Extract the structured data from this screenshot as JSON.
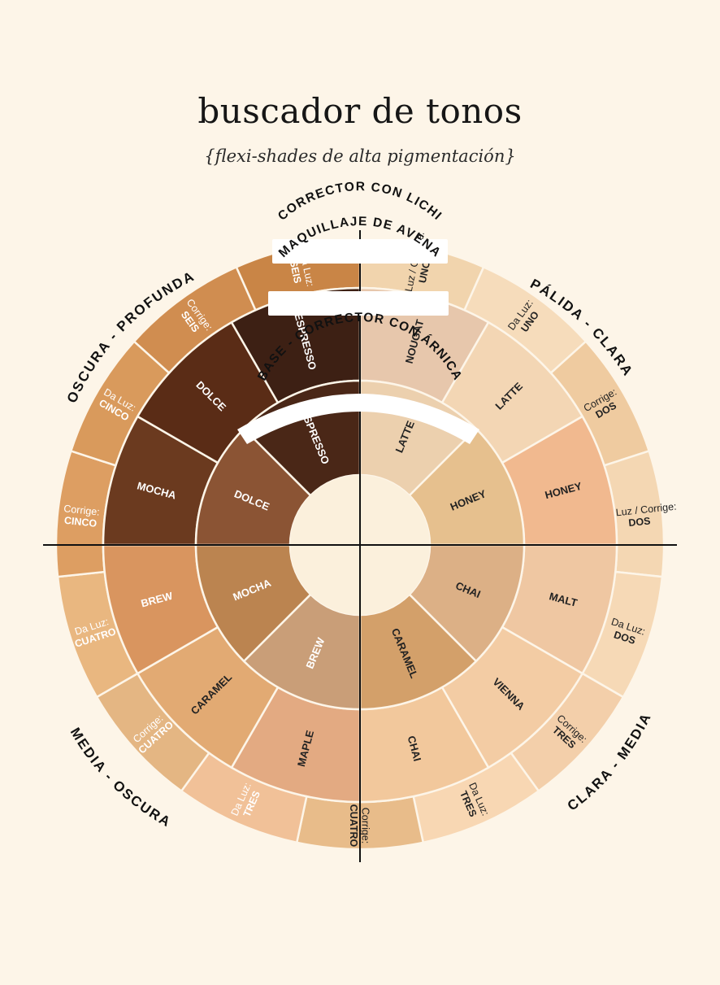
{
  "header": {
    "title": "buscador de tonos",
    "subtitle": "{flexi-shades de alta pigmentación}"
  },
  "rings": {
    "outer": "CORRECTOR CON LICHI",
    "middle": "MAQUILLAJE DE AVENA",
    "inner": "BASE - CORRECTOR CON ÁRNICA"
  },
  "quadrants": {
    "top_right": "PÁLIDA - CLARA",
    "top_left": "OSCURA - PROFUNDA",
    "bottom_right": "CLARA - MEDIA",
    "bottom_left": "MEDIA - OSCURA"
  },
  "colors": {
    "background": "#fdf5e8",
    "hub": "#fbf0dc",
    "axis": "#111111"
  },
  "outer_segments": [
    {
      "lines": [
        "Da Luz / Corrige:",
        "UNO"
      ],
      "color": "#f1d4ad",
      "text_color": "#222222"
    },
    {
      "lines": [
        "Da Luz:",
        "UNO"
      ],
      "color": "#f6dcbb",
      "text_color": "#222222"
    },
    {
      "lines": [
        "Corrige:",
        "DOS"
      ],
      "color": "#efcba0",
      "text_color": "#222222"
    },
    {
      "lines": [
        "Da Luz / Corrige:",
        "DOS"
      ],
      "color": "#f4d7b3",
      "text_color": "#222222"
    },
    {
      "lines": [
        "Da Luz:",
        "DOS"
      ],
      "color": "#f6d9b6",
      "text_color": "#222222"
    },
    {
      "lines": [
        "Corrige:",
        "TRES"
      ],
      "color": "#f3cfaa",
      "text_color": "#222222"
    },
    {
      "lines": [
        "Da Luz:",
        "TRES"
      ],
      "color": "#f8d7b3",
      "text_color": "#222222"
    },
    {
      "lines": [
        "Corrige:",
        "CUATRO"
      ],
      "color": "#e8bc8a",
      "text_color": "#222222"
    },
    {
      "lines": [
        "Da Luz:",
        "TRES"
      ],
      "color": "#f1c198",
      "text_color": "#ffffff"
    },
    {
      "lines": [
        "Corrige:",
        "CUATRO"
      ],
      "color": "#e4b683",
      "text_color": "#ffffff"
    },
    {
      "lines": [
        "Da Luz:",
        "CUATRO"
      ],
      "color": "#e9b780",
      "text_color": "#ffffff"
    },
    {
      "lines": [
        "Corrige:",
        "CINCO"
      ],
      "color": "#dd9e62",
      "text_color": "#ffffff"
    },
    {
      "lines": [
        "Da Luz:",
        "CINCO"
      ],
      "color": "#d99a5c",
      "text_color": "#ffffff"
    },
    {
      "lines": [
        "Corrige:",
        "SEIS"
      ],
      "color": "#d08d50",
      "text_color": "#ffffff"
    },
    {
      "lines": [
        "Da Luz:",
        "SEIS"
      ],
      "color": "#c98546",
      "text_color": "#ffffff"
    }
  ],
  "middle_segments": [
    {
      "label": "NOUGAT",
      "color": "#e7c7ac",
      "text_color": "#222222"
    },
    {
      "label": "LATTE",
      "color": "#f3d6b4",
      "text_color": "#222222"
    },
    {
      "label": "HONEY",
      "color": "#f1b98f",
      "text_color": "#222222"
    },
    {
      "label": "MALT",
      "color": "#efc7a2",
      "text_color": "#222222"
    },
    {
      "label": "VIENNA",
      "color": "#f3cca4",
      "text_color": "#222222"
    },
    {
      "label": "CHAI",
      "color": "#f2c89c",
      "text_color": "#222222"
    },
    {
      "label": "MAPLE",
      "color": "#e3aa82",
      "text_color": "#222222"
    },
    {
      "label": "CARAMEL",
      "color": "#e2aa73",
      "text_color": "#222222"
    },
    {
      "label": "BREW",
      "color": "#d9955f",
      "text_color": "#ffffff"
    },
    {
      "label": "MOCHA",
      "color": "#6b3a1f",
      "text_color": "#ffffff"
    },
    {
      "label": "DOLCE",
      "color": "#5a2c16",
      "text_color": "#ffffff"
    },
    {
      "label": "ESPRESSO",
      "color": "#3d2014",
      "text_color": "#ffffff"
    }
  ],
  "inner_segments": [
    {
      "label": "LATTE",
      "color": "#ecd0ae",
      "text_color": "#222222"
    },
    {
      "label": "HONEY",
      "color": "#e6c08e",
      "text_color": "#222222"
    },
    {
      "label": "CHAI",
      "color": "#dcb086",
      "text_color": "#222222"
    },
    {
      "label": "CARAMEL",
      "color": "#d3a06a",
      "text_color": "#222222"
    },
    {
      "label": "BREW",
      "color": "#c99e78",
      "text_color": "#ffffff"
    },
    {
      "label": "MOCHA",
      "color": "#bb8450",
      "text_color": "#ffffff"
    },
    {
      "label": "DOLCE",
      "color": "#8b5434",
      "text_color": "#ffffff"
    },
    {
      "label": "ESPRESSO",
      "color": "#4a2717",
      "text_color": "#ffffff"
    }
  ]
}
